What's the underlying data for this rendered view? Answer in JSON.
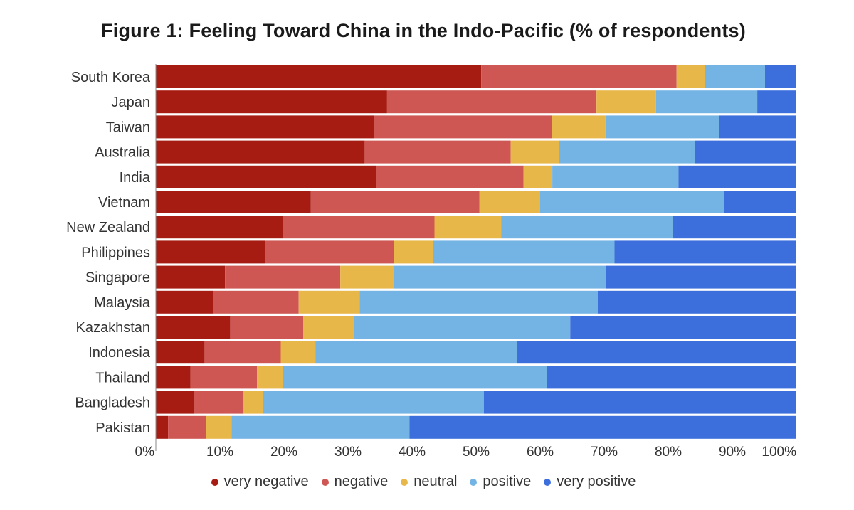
{
  "chart_data": {
    "type": "bar",
    "orientation": "horizontal",
    "stacked": true,
    "title": "Figure 1: Feeling Toward China in the Indo-Pacific (% of respondents)",
    "xlabel": "",
    "ylabel": "",
    "xlim": [
      0,
      100
    ],
    "x_ticks": [
      "0%",
      "10%",
      "20%",
      "30%",
      "40%",
      "50%",
      "60%",
      "70%",
      "80%",
      "90%",
      "100%"
    ],
    "categories": [
      "South Korea",
      "Japan",
      "Taiwan",
      "Australia",
      "India",
      "Vietnam",
      "New Zealand",
      "Philippines",
      "Singapore",
      "Malaysia",
      "Kazakhstan",
      "Indonesia",
      "Thailand",
      "Bangladesh",
      "Pakistan"
    ],
    "series": [
      {
        "name": "very negative",
        "color": "#a61c12",
        "values": [
          50.8,
          36.1,
          34.0,
          32.6,
          34.4,
          24.2,
          19.8,
          17.1,
          10.8,
          9.0,
          11.6,
          7.6,
          5.4,
          5.9,
          1.9
        ]
      },
      {
        "name": "negative",
        "color": "#cf5753",
        "values": [
          30.5,
          32.7,
          27.8,
          22.8,
          23.0,
          26.3,
          23.7,
          20.1,
          18.0,
          13.3,
          11.4,
          11.9,
          10.4,
          7.8,
          5.9
        ]
      },
      {
        "name": "neutral",
        "color": "#e8b74a",
        "values": [
          4.4,
          9.3,
          8.4,
          7.6,
          4.5,
          9.5,
          10.4,
          6.1,
          8.4,
          9.5,
          7.9,
          5.4,
          4.0,
          3.0,
          4.0
        ]
      },
      {
        "name": "positive",
        "color": "#74b4e4",
        "values": [
          9.4,
          15.8,
          17.7,
          21.2,
          19.7,
          28.7,
          26.8,
          28.3,
          33.1,
          37.2,
          33.8,
          31.5,
          41.3,
          34.5,
          27.8
        ]
      },
      {
        "name": "very positive",
        "color": "#3c6fdc",
        "values": [
          4.9,
          6.1,
          12.1,
          15.8,
          18.4,
          11.3,
          19.3,
          28.4,
          29.7,
          31.0,
          35.3,
          43.6,
          38.9,
          48.8,
          60.4
        ]
      }
    ]
  }
}
